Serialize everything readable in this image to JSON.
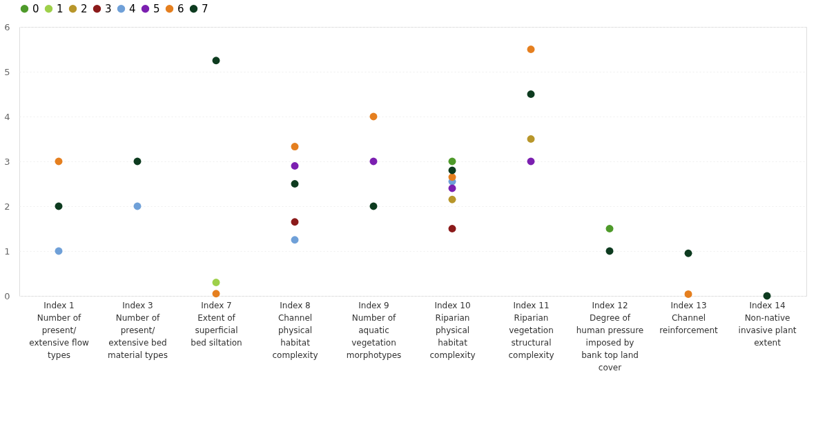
{
  "chart_data": {
    "type": "scatter",
    "categories": [
      "Index 1\nNumber of present/extensive flow types",
      "Index 3\nNumber of present/extensive bed material types",
      "Index 7\nExtent of superficial bed siltation",
      "Index 8\nChannel physical habitat complexity",
      "Index 9\nNumber of aquatic vegetation morphotypes",
      "Index 10\nRiparian physical habitat complexity",
      "Index 11\nRiparian vegetation structural complexity",
      "Index 12\nDegree of human pressure imposed by bank top land cover",
      "Index 13\nChannel reinforcement",
      "Index 14\nNon-native invasive plant extent"
    ],
    "series": [
      {
        "name": "0",
        "color": "#4e9a2a",
        "values": [
          null,
          null,
          null,
          null,
          null,
          3,
          null,
          1.5,
          null,
          null
        ]
      },
      {
        "name": "1",
        "color": "#9ed04a",
        "values": [
          null,
          null,
          0.3,
          null,
          null,
          null,
          null,
          null,
          null,
          null
        ]
      },
      {
        "name": "2",
        "color": "#b8962a",
        "values": [
          null,
          null,
          null,
          null,
          null,
          2.15,
          3.5,
          null,
          null,
          null
        ]
      },
      {
        "name": "3",
        "color": "#8b1a1a",
        "values": [
          null,
          null,
          null,
          1.65,
          null,
          1.5,
          null,
          null,
          null,
          null
        ]
      },
      {
        "name": "4",
        "color": "#6fa0d8",
        "values": [
          1,
          2,
          null,
          1.25,
          null,
          2.55,
          null,
          null,
          null,
          null
        ]
      },
      {
        "name": "5",
        "color": "#7b1fb0",
        "values": [
          null,
          null,
          null,
          2.9,
          3,
          2.4,
          3,
          null,
          null,
          null
        ]
      },
      {
        "name": "6",
        "color": "#e57f1f",
        "values": [
          3,
          null,
          0.05,
          3.33,
          4,
          2.65,
          5.5,
          null,
          0.04,
          null
        ]
      },
      {
        "name": "7",
        "color": "#0d3b1f",
        "values": [
          2,
          3,
          5.25,
          2.5,
          2,
          2.8,
          4.5,
          1,
          0.95,
          0
        ]
      }
    ],
    "ylim": [
      0,
      6
    ],
    "yticks": [
      0,
      1,
      2,
      3,
      4,
      5,
      6
    ],
    "grid": "y",
    "legend": "top left",
    "marker": "circle"
  }
}
